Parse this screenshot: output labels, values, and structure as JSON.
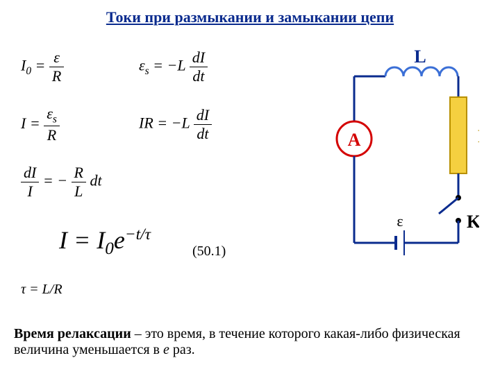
{
  "title": "Токи при размыкании и замыкании цепи",
  "eq": {
    "i0": "I",
    "i0sub": "0",
    "eq": " = ",
    "eps": "ε",
    "R": "R",
    "epsS": "ε",
    "epsSsub": "s",
    "mL": "−L",
    "dI": "dI",
    "dt": "dt",
    "I": "I",
    "epsS2": "ε",
    "epsS2sub": "s",
    "R2": "R",
    "IR": "IR = −L",
    "dI2": "dI",
    "I2": "I",
    "mRL": "− ",
    "R3": "R",
    "L3": "L",
    "dt3": "dt",
    "big": "I = I",
    "bigsub": "0",
    "bigexp": "e",
    "bigpow": "−t/τ",
    "num": "(50.1)",
    "tau": "τ = L/R"
  },
  "bottom": {
    "b": "Время релаксации",
    "rest1": " – это время, в течение которого какая-либо физическая величина уменьшается в ",
    "e": "e",
    "rest2": " раз."
  },
  "circuit": {
    "labels": {
      "L": "L",
      "A": "A",
      "R": "R",
      "eps": "ε",
      "K": "K"
    },
    "colors": {
      "wire": "#0a2b8e",
      "inductor": "#3b6fd6",
      "ammeterStroke": "#d40000",
      "ammeterText": "#d40000",
      "resistorFill": "#f5d040",
      "resistorStroke": "#b89000",
      "labelL": "#0a2b8e",
      "labelR": "#b89000",
      "labelK": "#000",
      "labelEps": "#000",
      "node": "#000"
    },
    "stroke_w": 3
  }
}
